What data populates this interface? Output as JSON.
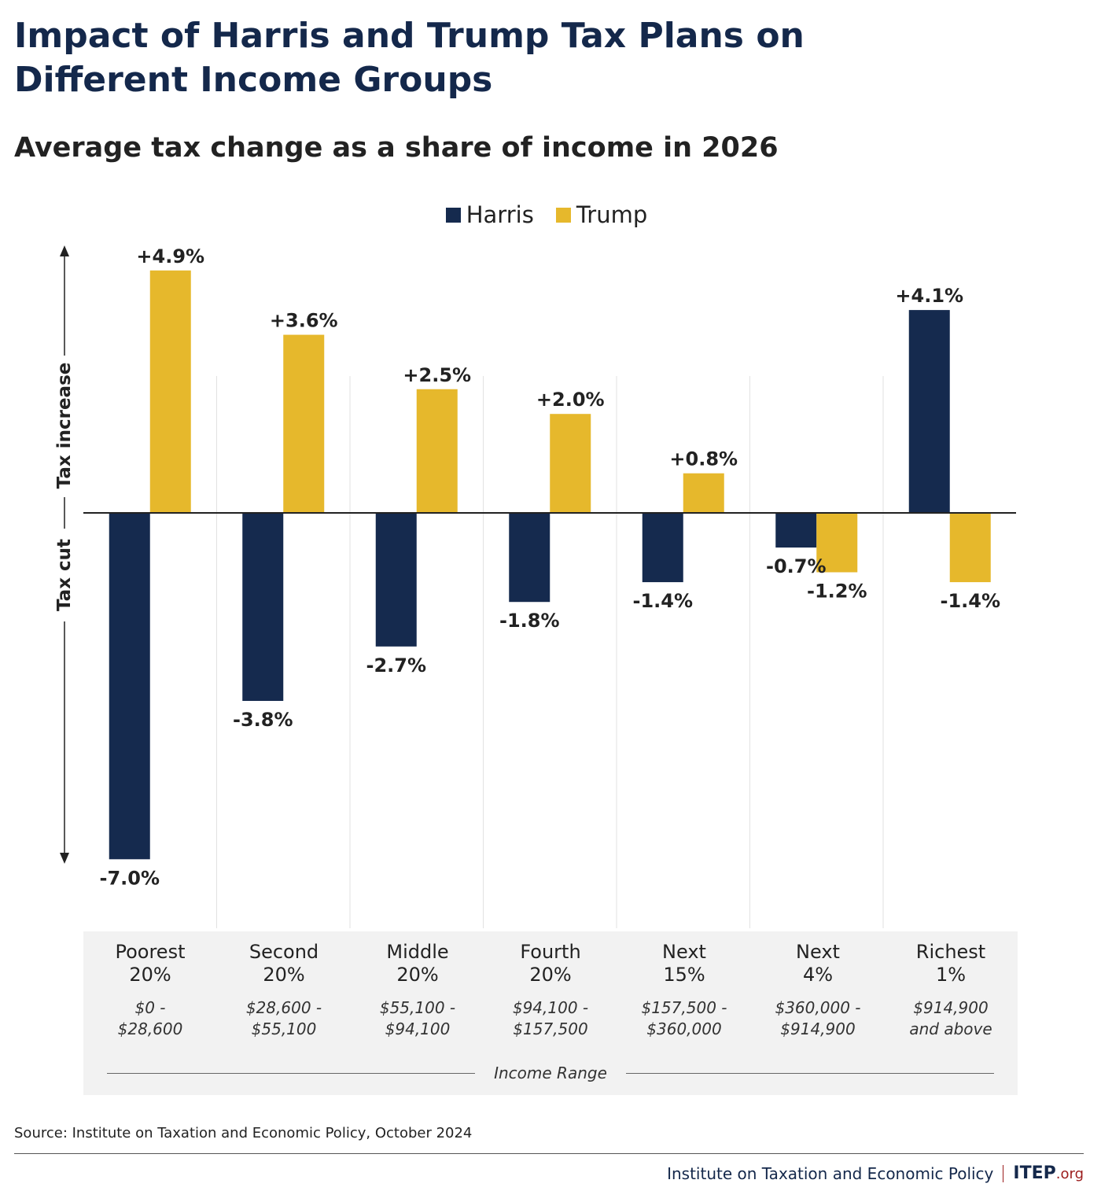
{
  "title": "Impact of Harris and Trump Tax Plans on Different Income Groups",
  "subtitle": "Average tax change as a share of income in 2026",
  "colors": {
    "harris": "#152a4e",
    "trump": "#e6b82c",
    "title": "#14284b",
    "panel": "#f2f2f2",
    "logo_accent": "#9b1c1c"
  },
  "legend": [
    {
      "name": "Harris",
      "color": "#152a4e"
    },
    {
      "name": "Trump",
      "color": "#e6b82c"
    }
  ],
  "axis": {
    "increase_label": "Tax increase",
    "cut_label": "Tax cut"
  },
  "chart_data": {
    "type": "bar",
    "categories": [
      "Poorest 20%",
      "Second 20%",
      "Middle 20%",
      "Fourth 20%",
      "Next 15%",
      "Next 4%",
      "Richest 1%"
    ],
    "series": [
      {
        "name": "Harris",
        "values": [
          -7.0,
          -3.8,
          -2.7,
          -1.8,
          -1.4,
          -0.7,
          4.1
        ],
        "labels": [
          "-7.0%",
          "-3.8%",
          "-2.7%",
          "-1.8%",
          "-1.4%",
          "-0.7%",
          "+4.1%"
        ]
      },
      {
        "name": "Trump",
        "values": [
          4.9,
          3.6,
          2.5,
          2.0,
          0.8,
          -1.2,
          -1.4
        ],
        "labels": [
          "+4.9%",
          "+3.6%",
          "+2.5%",
          "+2.0%",
          "+0.8%",
          "-1.2%",
          "-1.4%"
        ]
      }
    ],
    "ylim": [
      -7.0,
      4.9
    ],
    "legend_position": "top-center",
    "grid": false
  },
  "categories": [
    {
      "name": "Poorest\n20%",
      "range": "$0 -\n$28,600"
    },
    {
      "name": "Second\n20%",
      "range": "$28,600 -\n$55,100"
    },
    {
      "name": "Middle\n20%",
      "range": "$55,100 -\n$94,100"
    },
    {
      "name": "Fourth\n20%",
      "range": "$94,100 -\n$157,500"
    },
    {
      "name": "Next\n15%",
      "range": "$157,500 -\n$360,000"
    },
    {
      "name": "Next\n4%",
      "range": "$360,000 -\n$914,900"
    },
    {
      "name": "Richest\n1%",
      "range": "$914,900\nand above"
    }
  ],
  "income_range_label": "Income Range",
  "source": "Source: Institute on Taxation and Economic Policy, October 2024",
  "footer": {
    "org": "Institute on Taxation and Economic Policy",
    "logo_main": "ITEP",
    "logo_suffix": ".org"
  }
}
